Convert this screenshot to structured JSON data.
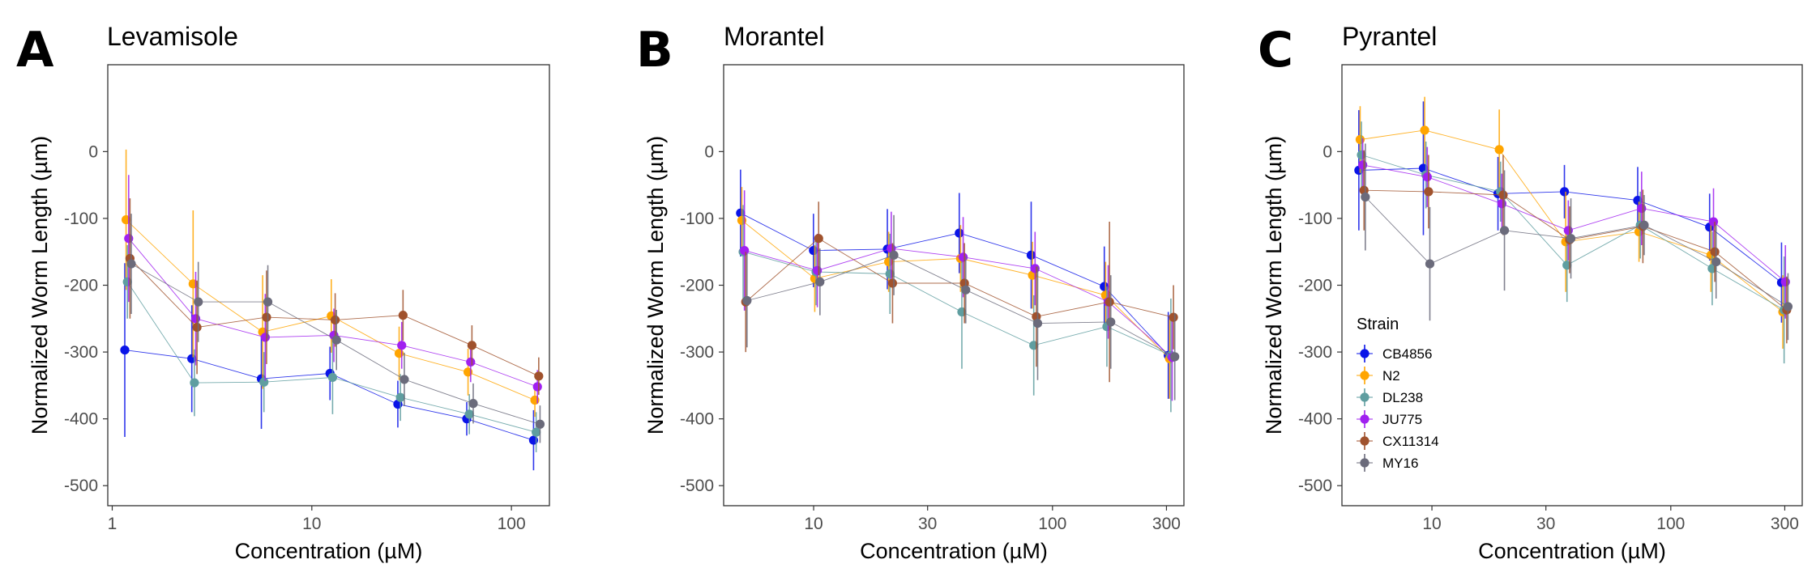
{
  "figure": {
    "legend": {
      "title": "Strain",
      "placement": "inside-bottom-left of panel C",
      "entries": [
        "CB4856",
        "N2",
        "DL238",
        "JU775",
        "CX11314",
        "MY16"
      ]
    }
  },
  "strain_colors": {
    "CB4856": "#0a14e8",
    "N2": "#ffa500",
    "DL238": "#5f9ea0",
    "JU775": "#a020f0",
    "CX11314": "#a0522d",
    "MY16": "#6b6b7b"
  },
  "chart_data": [
    {
      "panel": "A",
      "type": "line",
      "title": "Levamisole",
      "xlabel": "Concentration (µM)",
      "ylabel": "Normalized Worm Length (µm)",
      "x_scale": "log",
      "xlim": [
        0.95,
        155
      ],
      "ylim": [
        -530,
        130
      ],
      "xticks": [
        1,
        10,
        100
      ],
      "xtick_labels": [
        "1",
        "10",
        "100"
      ],
      "yticks": [
        0,
        -100,
        -200,
        -300,
        -400,
        -500
      ],
      "ytick_labels": [
        "0",
        "-100",
        "-200",
        "-300",
        "-400",
        "-500"
      ],
      "grid": false,
      "x": [
        1.2,
        2.6,
        5.8,
        12.8,
        28,
        62,
        134
      ],
      "series": [
        {
          "name": "CB4856",
          "values": [
            -297,
            -310,
            -340,
            -332,
            -378,
            -400,
            -432
          ],
          "err": [
            130,
            80,
            75,
            40,
            35,
            25,
            45
          ]
        },
        {
          "name": "N2",
          "values": [
            -102,
            -198,
            -270,
            -246,
            -302,
            -330,
            -372
          ],
          "err": [
            105,
            110,
            85,
            55,
            40,
            35,
            25
          ]
        },
        {
          "name": "DL238",
          "values": [
            -195,
            -346,
            -345,
            -338,
            -368,
            -393,
            -420
          ],
          "err": [
            55,
            50,
            45,
            55,
            35,
            30,
            30
          ]
        },
        {
          "name": "JU775",
          "values": [
            -130,
            -250,
            -278,
            -275,
            -290,
            -315,
            -352
          ],
          "err": [
            95,
            70,
            65,
            40,
            35,
            30,
            25
          ]
        },
        {
          "name": "CX11314",
          "values": [
            -160,
            -263,
            -248,
            -252,
            -245,
            -290,
            -336
          ],
          "err": [
            90,
            70,
            70,
            40,
            38,
            30,
            28
          ]
        },
        {
          "name": "MY16",
          "values": [
            -168,
            -225,
            -225,
            -282,
            -341,
            -377,
            -408
          ],
          "err": [
            75,
            60,
            55,
            45,
            40,
            30,
            28
          ]
        }
      ]
    },
    {
      "panel": "B",
      "type": "line",
      "title": "Morantel",
      "xlabel": "Concentration (µM)",
      "ylabel": "Normalized Worm Length (µm)",
      "x_scale": "log",
      "xlim": [
        4.2,
        355
      ],
      "ylim": [
        -530,
        130
      ],
      "xticks": [
        10,
        30,
        100,
        300
      ],
      "xtick_labels": [
        "10",
        "30",
        "100",
        "300"
      ],
      "yticks": [
        0,
        -100,
        -200,
        -300,
        -400,
        -500
      ],
      "ytick_labels": [
        "0",
        "-100",
        "-200",
        "-300",
        "-400",
        "-500"
      ],
      "grid": false,
      "x": [
        5.1,
        10.3,
        21,
        42,
        84,
        170,
        315
      ],
      "series": [
        {
          "name": "CB4856",
          "values": [
            -92,
            -148,
            -146,
            -122,
            -155,
            -202,
            -305
          ],
          "err": [
            65,
            55,
            60,
            60,
            80,
            60,
            65
          ]
        },
        {
          "name": "N2",
          "values": [
            -103,
            -190,
            -165,
            -160,
            -185,
            -215,
            -310
          ],
          "err": [
            50,
            50,
            45,
            50,
            50,
            50,
            60
          ]
        },
        {
          "name": "DL238",
          "values": [
            -150,
            -180,
            -183,
            -240,
            -290,
            -262,
            -305
          ],
          "err": [
            70,
            50,
            60,
            85,
            75,
            60,
            85
          ]
        },
        {
          "name": "JU775",
          "values": [
            -148,
            -178,
            -145,
            -158,
            -175,
            -225,
            -308
          ],
          "err": [
            90,
            55,
            55,
            60,
            55,
            55,
            65
          ]
        },
        {
          "name": "CX11314",
          "values": [
            -225,
            -130,
            -197,
            -197,
            -247,
            -225,
            -248
          ],
          "err": [
            75,
            55,
            60,
            60,
            75,
            120,
            48
          ]
        },
        {
          "name": "MY16",
          "values": [
            -223,
            -195,
            -155,
            -207,
            -257,
            -255,
            -307
          ],
          "err": [
            70,
            50,
            60,
            50,
            85,
            70,
            65
          ]
        }
      ]
    },
    {
      "panel": "C",
      "type": "line",
      "title": "Pyrantel",
      "xlabel": "Concentration (µM)",
      "ylabel": "Normalized Worm Length (µm)",
      "x_scale": "log",
      "xlim": [
        4.2,
        355
      ],
      "ylim": [
        -530,
        130
      ],
      "xticks": [
        10,
        30,
        100,
        300
      ],
      "xtick_labels": [
        "10",
        "30",
        "100",
        "300"
      ],
      "yticks": [
        0,
        -100,
        -200,
        -300,
        -400,
        -500
      ],
      "ytick_labels": [
        "0",
        "-100",
        "-200",
        "-300",
        "-400",
        "-500"
      ],
      "grid": false,
      "x": [
        5.1,
        9.5,
        19.5,
        37,
        75,
        150,
        300
      ],
      "series": [
        {
          "name": "CB4856",
          "values": [
            -28,
            -25,
            -63,
            -60,
            -73,
            -113,
            -196
          ],
          "err": [
            90,
            100,
            55,
            40,
            50,
            50,
            60
          ]
        },
        {
          "name": "N2",
          "values": [
            18,
            32,
            3,
            -135,
            -120,
            -155,
            -240
          ],
          "err": [
            50,
            50,
            60,
            75,
            45,
            55,
            55
          ]
        },
        {
          "name": "DL238",
          "values": [
            -5,
            -35,
            -60,
            -170,
            -110,
            -175,
            -237
          ],
          "err": [
            50,
            50,
            45,
            55,
            50,
            55,
            80
          ]
        },
        {
          "name": "JU775",
          "values": [
            -20,
            -38,
            -78,
            -118,
            -85,
            -105,
            -195
          ],
          "err": [
            40,
            45,
            45,
            45,
            55,
            50,
            55
          ]
        },
        {
          "name": "CX11314",
          "values": [
            -58,
            -60,
            -65,
            -132,
            -112,
            -150,
            -237
          ],
          "err": [
            60,
            55,
            60,
            50,
            55,
            45,
            50
          ]
        },
        {
          "name": "MY16",
          "values": [
            -68,
            -168,
            -118,
            -130,
            -110,
            -165,
            -232
          ],
          "err": [
            80,
            85,
            90,
            60,
            45,
            55,
            50
          ]
        }
      ]
    }
  ]
}
